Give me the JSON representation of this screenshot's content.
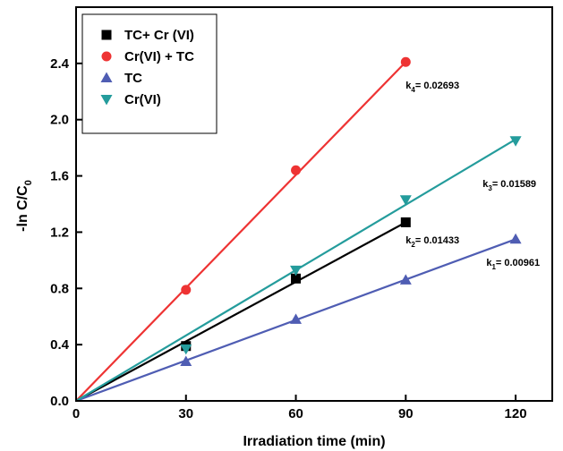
{
  "chart_data": {
    "type": "scatter",
    "xlabel": "Irradiation time (min)",
    "ylabel_main": "-ln C/C",
    "ylabel_sub": "0",
    "xlim": [
      0,
      130
    ],
    "ylim": [
      0,
      2.8
    ],
    "xticks": [
      0,
      30,
      60,
      90,
      120
    ],
    "yticks": [
      0.0,
      0.4,
      0.8,
      1.2,
      1.6,
      2.0,
      2.4
    ],
    "xtick_labels": [
      "0",
      "30",
      "60",
      "90",
      "120"
    ],
    "ytick_labels": [
      "0.0",
      "0.4",
      "0.8",
      "1.2",
      "1.6",
      "2.0",
      "2.4"
    ],
    "grid": false,
    "legend_position": "top-left",
    "series": [
      {
        "name": "TC+ Cr (VI)",
        "marker": "square",
        "color": "#000000",
        "x": [
          0,
          30,
          60,
          90
        ],
        "y": [
          0.0,
          0.39,
          0.87,
          1.27
        ],
        "fit_end": [
          90,
          1.27
        ],
        "rate_label": {
          "prefix": "k",
          "sub": "2",
          "value": "= 0.01433",
          "anchor_x": 90,
          "anchor_y": 1.12
        }
      },
      {
        "name": "Cr(VI) + TC",
        "marker": "circle",
        "color": "#ee3333",
        "x": [
          0,
          30,
          60,
          90
        ],
        "y": [
          0.0,
          0.79,
          1.64,
          2.41
        ],
        "fit_end": [
          90,
          2.41
        ],
        "rate_label": {
          "prefix": "k",
          "sub": "4",
          "value": "= 0.02693",
          "anchor_x": 90,
          "anchor_y": 2.22
        }
      },
      {
        "name": "TC",
        "marker": "triangle-up",
        "color": "#4f5db3",
        "x": [
          0,
          30,
          60,
          90,
          120
        ],
        "y": [
          0.0,
          0.28,
          0.58,
          0.86,
          1.15
        ],
        "fit_end": [
          120,
          1.15
        ],
        "rate_label": {
          "prefix": "k",
          "sub": "1",
          "value": "= 0.00961",
          "anchor_x": 112,
          "anchor_y": 0.96
        }
      },
      {
        "name": "Cr(VI)",
        "marker": "triangle-down",
        "color": "#249c9c",
        "x": [
          0,
          30,
          60,
          90,
          120
        ],
        "y": [
          0.0,
          0.37,
          0.93,
          1.43,
          1.85
        ],
        "fit_end": [
          120,
          1.86
        ],
        "rate_label": {
          "prefix": "k",
          "sub": "3",
          "value": "= 0.01589",
          "anchor_x": 111,
          "anchor_y": 1.52
        }
      }
    ]
  }
}
